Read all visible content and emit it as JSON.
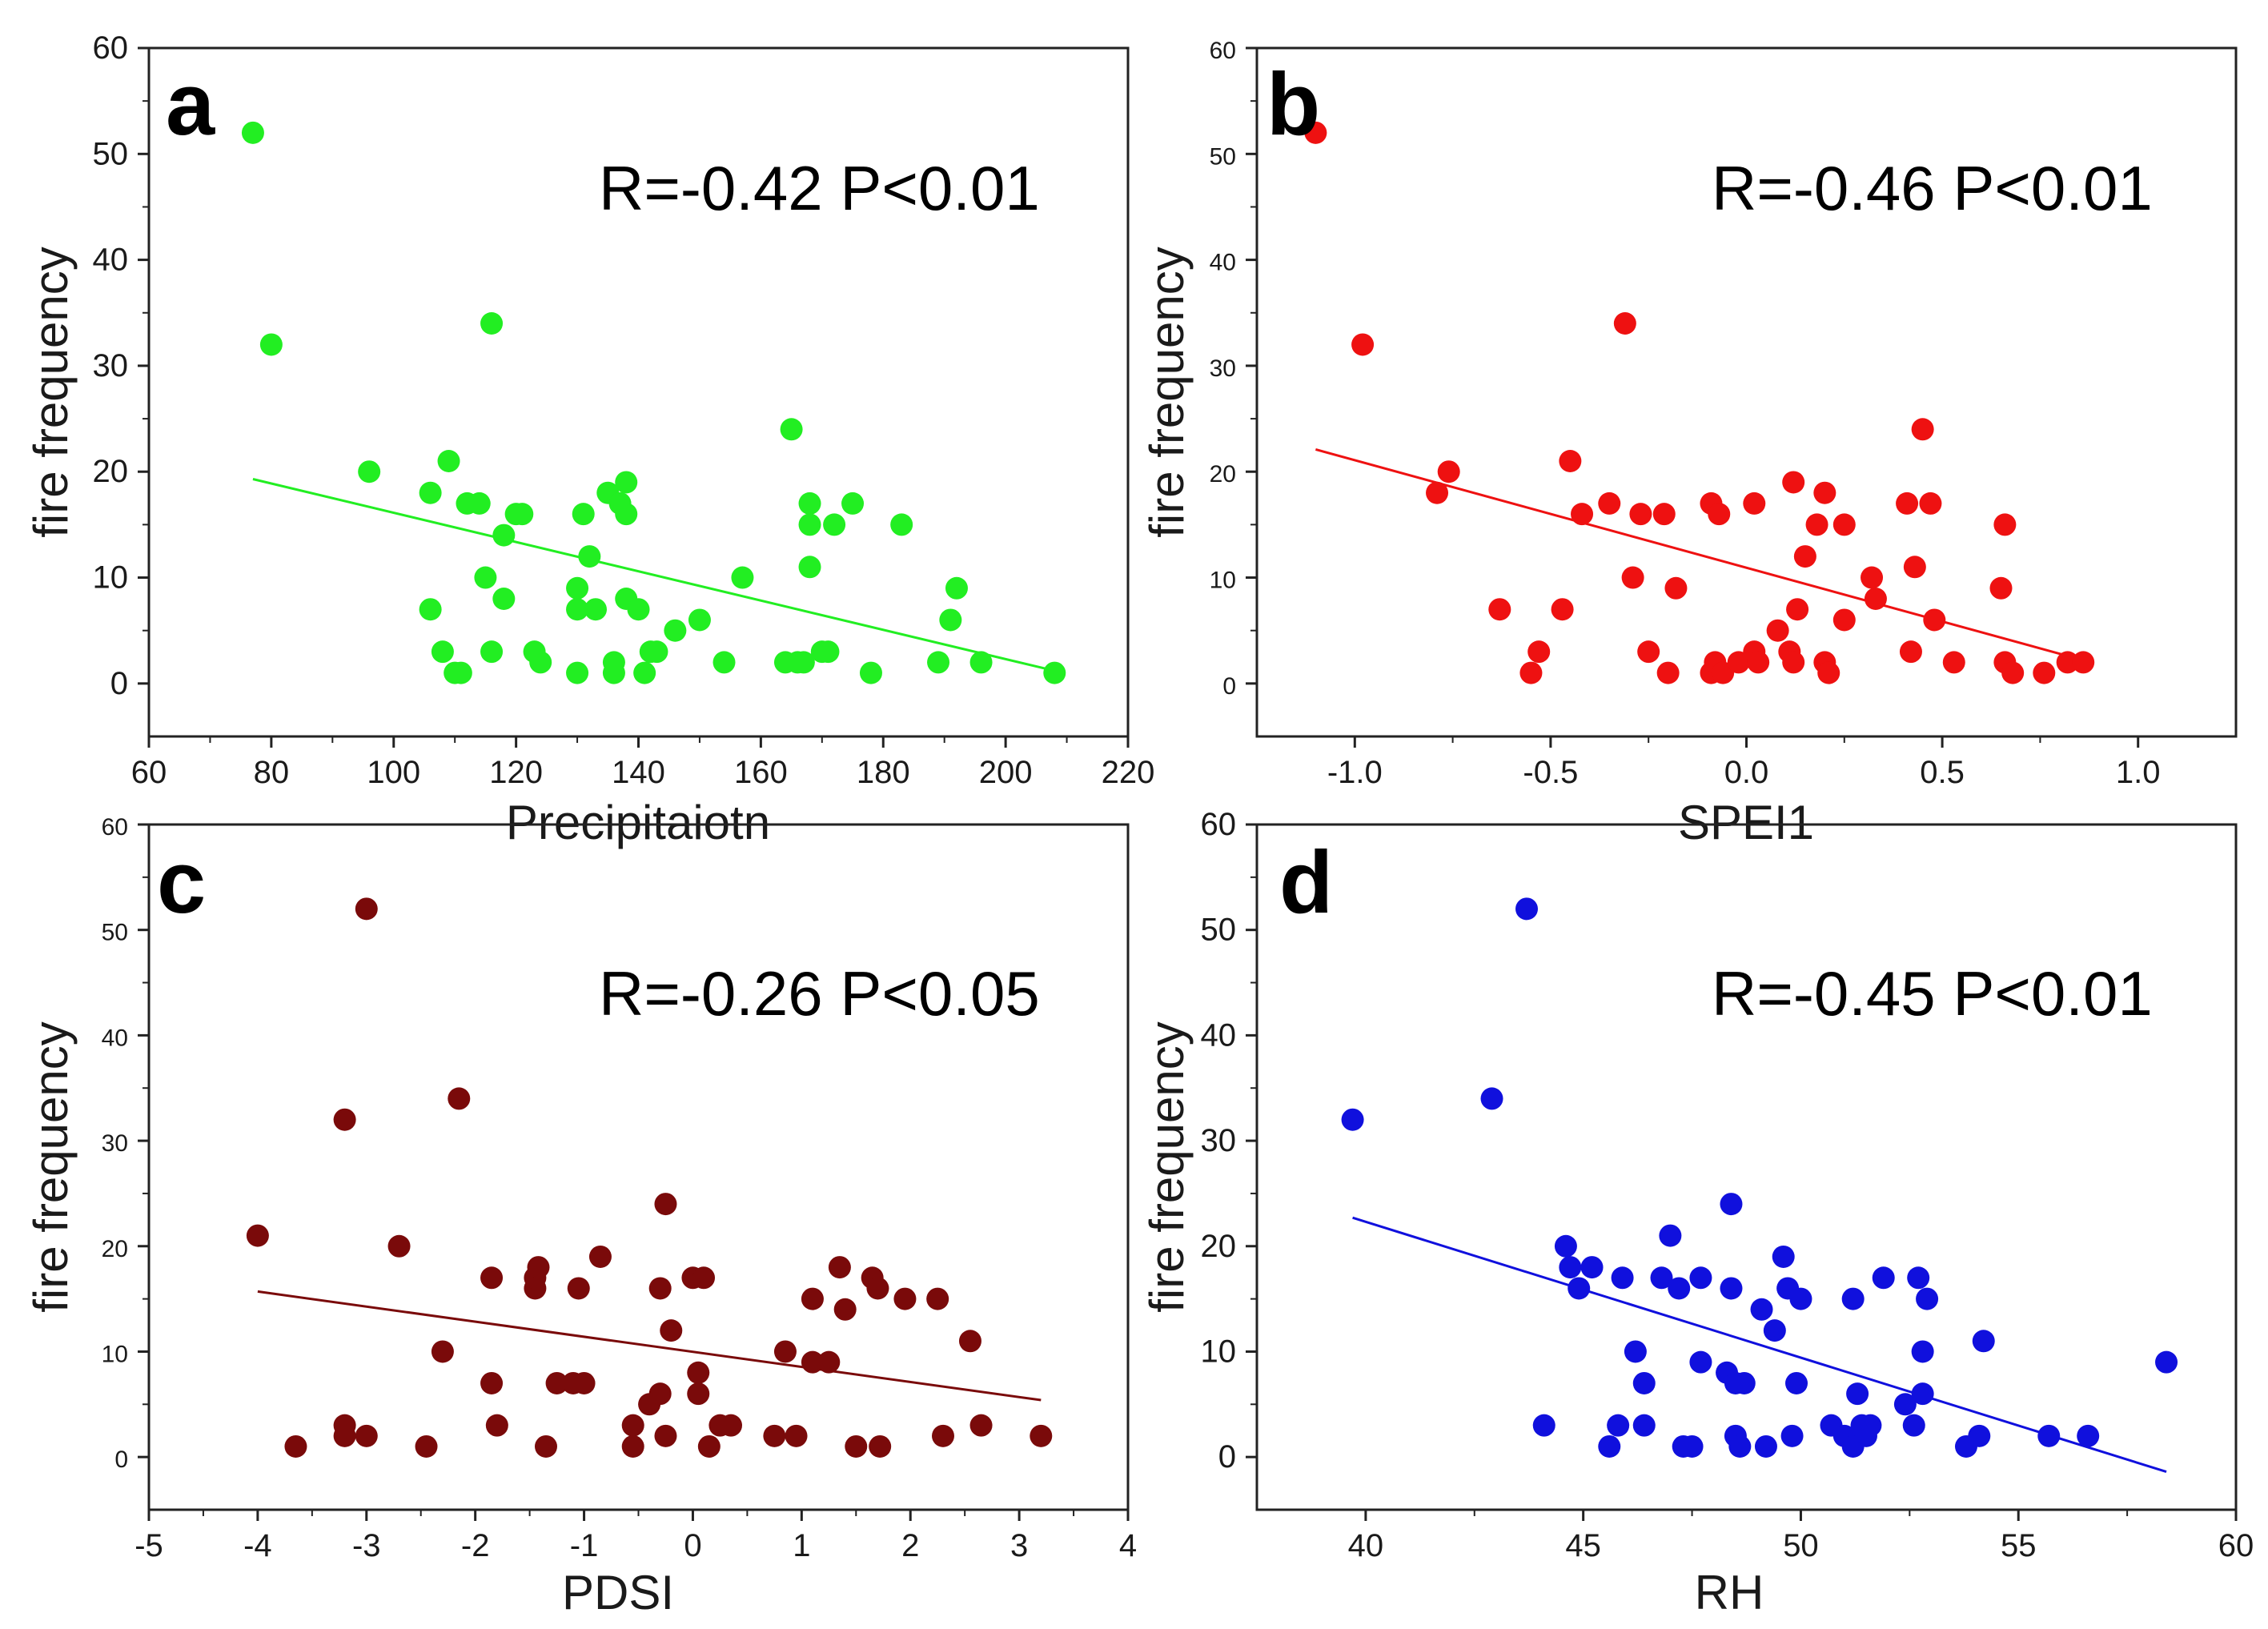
{
  "chart_data": [
    {
      "type": "scatter",
      "panel_label": "a",
      "annotation": "R=-0.42 P<0.01",
      "xlabel": "Precipitaiotn",
      "ylabel": "fire frequency",
      "xlim": [
        60,
        220
      ],
      "ylim": [
        -5,
        60
      ],
      "xticks": [
        "60",
        "80",
        "100",
        "120",
        "140",
        "160",
        "180",
        "200",
        "220"
      ],
      "yticks": [
        "0",
        "10",
        "20",
        "30",
        "40",
        "50",
        "60"
      ],
      "color": "#22ee22",
      "trendline": {
        "x": [
          77,
          208
        ],
        "y": [
          19.3,
          1.2
        ]
      },
      "points": [
        [
          77,
          52
        ],
        [
          80,
          32
        ],
        [
          96,
          20
        ],
        [
          106,
          18
        ],
        [
          106,
          7
        ],
        [
          108,
          3
        ],
        [
          109,
          21
        ],
        [
          110,
          1
        ],
        [
          111,
          1
        ],
        [
          112,
          17
        ],
        [
          114,
          17
        ],
        [
          115,
          10
        ],
        [
          116,
          3
        ],
        [
          116,
          34
        ],
        [
          118,
          14
        ],
        [
          118,
          8
        ],
        [
          120,
          16
        ],
        [
          121,
          16
        ],
        [
          123,
          3
        ],
        [
          124,
          2
        ],
        [
          130,
          9
        ],
        [
          130,
          7
        ],
        [
          130,
          1
        ],
        [
          131,
          16
        ],
        [
          132,
          12
        ],
        [
          133,
          7
        ],
        [
          135,
          18
        ],
        [
          136,
          2
        ],
        [
          136,
          1
        ],
        [
          137,
          17
        ],
        [
          138,
          8
        ],
        [
          138,
          19
        ],
        [
          138,
          16
        ],
        [
          140,
          7
        ],
        [
          141,
          1
        ],
        [
          142,
          3
        ],
        [
          143,
          3
        ],
        [
          146,
          5
        ],
        [
          150,
          6
        ],
        [
          154,
          2
        ],
        [
          157,
          10
        ],
        [
          164,
          2
        ],
        [
          165,
          24
        ],
        [
          166,
          2
        ],
        [
          167,
          2
        ],
        [
          168,
          11
        ],
        [
          168,
          15
        ],
        [
          168,
          17
        ],
        [
          170,
          3
        ],
        [
          171,
          3
        ],
        [
          172,
          15
        ],
        [
          175,
          17
        ],
        [
          178,
          1
        ],
        [
          183,
          15
        ],
        [
          189,
          2
        ],
        [
          191,
          6
        ],
        [
          192,
          9
        ],
        [
          196,
          2
        ],
        [
          208,
          1
        ]
      ]
    },
    {
      "type": "scatter",
      "panel_label": "b",
      "annotation": "R=-0.46 P<0.01",
      "xlabel": "SPEI1",
      "ylabel": "fire frequency",
      "xlim": [
        -1.25,
        1.25
      ],
      "ylim": [
        -5,
        60
      ],
      "xticks": [
        "-1.0",
        "-0.5",
        "0.0",
        "0.5",
        "1.0"
      ],
      "yticks": [
        "0",
        "10",
        "20",
        "30",
        "40",
        "50",
        "60"
      ],
      "color": "#ee1111",
      "trendline": {
        "x": [
          -1.1,
          0.85
        ],
        "y": [
          22.1,
          2.3
        ]
      },
      "points": [
        [
          -1.1,
          52
        ],
        [
          -0.98,
          32
        ],
        [
          -0.76,
          20
        ],
        [
          -0.79,
          18
        ],
        [
          -0.31,
          34
        ],
        [
          -0.45,
          21
        ],
        [
          -0.63,
          7
        ],
        [
          -0.47,
          7
        ],
        [
          -0.53,
          3
        ],
        [
          -0.55,
          1
        ],
        [
          -0.42,
          16
        ],
        [
          -0.35,
          17
        ],
        [
          -0.27,
          16
        ],
        [
          -0.29,
          10
        ],
        [
          -0.25,
          3
        ],
        [
          -0.2,
          1
        ],
        [
          -0.21,
          16
        ],
        [
          -0.18,
          9
        ],
        [
          -0.09,
          17
        ],
        [
          -0.07,
          16
        ],
        [
          -0.09,
          1
        ],
        [
          -0.08,
          2
        ],
        [
          -0.06,
          1
        ],
        [
          -0.02,
          2
        ],
        [
          0.02,
          17
        ],
        [
          0.02,
          3
        ],
        [
          0.03,
          2
        ],
        [
          0.08,
          5
        ],
        [
          0.11,
          3
        ],
        [
          0.12,
          2
        ],
        [
          0.12,
          19
        ],
        [
          0.13,
          7
        ],
        [
          0.15,
          12
        ],
        [
          0.18,
          15
        ],
        [
          0.2,
          18
        ],
        [
          0.2,
          2
        ],
        [
          0.21,
          1
        ],
        [
          0.25,
          15
        ],
        [
          0.25,
          6
        ],
        [
          0.32,
          10
        ],
        [
          0.33,
          8
        ],
        [
          0.41,
          17
        ],
        [
          0.42,
          3
        ],
        [
          0.43,
          11
        ],
        [
          0.45,
          24
        ],
        [
          0.47,
          17
        ],
        [
          0.48,
          6
        ],
        [
          0.53,
          2
        ],
        [
          0.65,
          9
        ],
        [
          0.66,
          15
        ],
        [
          0.66,
          2
        ],
        [
          0.68,
          1
        ],
        [
          0.76,
          1
        ],
        [
          0.82,
          2
        ],
        [
          0.86,
          2
        ]
      ]
    },
    {
      "type": "scatter",
      "panel_label": "c",
      "annotation": "R=-0.26 P<0.05",
      "xlabel": "PDSI",
      "ylabel": "fire frequency",
      "xlim": [
        -5,
        4
      ],
      "ylim": [
        -5,
        60
      ],
      "xticks": [
        "-5",
        "-4",
        "-3",
        "-2",
        "-1",
        "0",
        "1",
        "2",
        "3",
        "4"
      ],
      "yticks": [
        "0",
        "10",
        "20",
        "30",
        "40",
        "50",
        "60"
      ],
      "color": "#7a0a0a",
      "trendline": {
        "x": [
          -4,
          3.2
        ],
        "y": [
          15.7,
          5.4
        ]
      },
      "points": [
        [
          -3,
          52
        ],
        [
          -3.2,
          32
        ],
        [
          -2.15,
          34
        ],
        [
          -4,
          21
        ],
        [
          -2.7,
          20
        ],
        [
          -3.65,
          1
        ],
        [
          -3.2,
          3
        ],
        [
          -3.2,
          2
        ],
        [
          -3,
          2
        ],
        [
          -2.45,
          1
        ],
        [
          -2.3,
          10
        ],
        [
          -1.85,
          17
        ],
        [
          -1.85,
          7
        ],
        [
          -1.8,
          3
        ],
        [
          -1.45,
          16
        ],
        [
          -1.45,
          17
        ],
        [
          -1.42,
          18
        ],
        [
          -1.35,
          1
        ],
        [
          -1.25,
          7
        ],
        [
          -1.1,
          7
        ],
        [
          -1.05,
          16
        ],
        [
          -1,
          7
        ],
        [
          -0.85,
          19
        ],
        [
          -0.55,
          3
        ],
        [
          -0.55,
          1
        ],
        [
          -0.4,
          5
        ],
        [
          -0.3,
          6
        ],
        [
          -0.3,
          16
        ],
        [
          -0.25,
          2
        ],
        [
          -0.25,
          24
        ],
        [
          -0.2,
          12
        ],
        [
          0,
          17
        ],
        [
          0.05,
          8
        ],
        [
          0.05,
          6
        ],
        [
          0.1,
          17
        ],
        [
          0.15,
          1
        ],
        [
          0.25,
          3
        ],
        [
          0.35,
          3
        ],
        [
          0.75,
          2
        ],
        [
          0.85,
          10
        ],
        [
          0.95,
          2
        ],
        [
          1.1,
          15
        ],
        [
          1.1,
          9
        ],
        [
          1.25,
          9
        ],
        [
          1.35,
          18
        ],
        [
          1.4,
          14
        ],
        [
          1.5,
          1
        ],
        [
          1.65,
          17
        ],
        [
          1.7,
          16
        ],
        [
          1.72,
          1
        ],
        [
          1.95,
          15
        ],
        [
          2.25,
          15
        ],
        [
          2.3,
          2
        ],
        [
          2.55,
          11
        ],
        [
          2.65,
          3
        ],
        [
          3.2,
          2
        ]
      ]
    },
    {
      "type": "scatter",
      "panel_label": "d",
      "annotation": "R=-0.45 P<0.01",
      "xlabel": "RH",
      "ylabel": "fire frequency",
      "xlim": [
        37.5,
        60
      ],
      "ylim": [
        -5,
        60
      ],
      "xticks": [
        "40",
        "45",
        "50",
        "55",
        "60"
      ],
      "yticks": [
        "0",
        "10",
        "20",
        "30",
        "40",
        "50",
        "60"
      ],
      "color": "#1010dd",
      "trendline": {
        "x": [
          39.7,
          58.4
        ],
        "y": [
          22.7,
          -1.4
        ]
      },
      "points": [
        [
          43.7,
          52
        ],
        [
          39.7,
          32
        ],
        [
          42.9,
          34
        ],
        [
          44.6,
          20
        ],
        [
          44.7,
          18
        ],
        [
          44.9,
          16
        ],
        [
          45.2,
          18
        ],
        [
          45.9,
          17
        ],
        [
          46.2,
          10
        ],
        [
          46.4,
          7
        ],
        [
          46.4,
          3
        ],
        [
          45.6,
          1
        ],
        [
          44.1,
          3
        ],
        [
          45.8,
          3
        ],
        [
          46.8,
          17
        ],
        [
          47,
          21
        ],
        [
          47.2,
          16
        ],
        [
          47.3,
          1
        ],
        [
          47.5,
          1
        ],
        [
          47.7,
          17
        ],
        [
          47.7,
          9
        ],
        [
          48.4,
          24
        ],
        [
          48.3,
          8
        ],
        [
          48.5,
          7
        ],
        [
          48.7,
          7
        ],
        [
          48.4,
          16
        ],
        [
          48.5,
          2
        ],
        [
          48.6,
          1
        ],
        [
          49.1,
          14
        ],
        [
          49.2,
          1
        ],
        [
          49.4,
          12
        ],
        [
          49.6,
          19
        ],
        [
          49.7,
          16
        ],
        [
          49.8,
          2
        ],
        [
          49.9,
          7
        ],
        [
          50,
          15
        ],
        [
          50.7,
          3
        ],
        [
          51,
          2
        ],
        [
          51.2,
          15
        ],
        [
          51.2,
          1
        ],
        [
          51.3,
          6
        ],
        [
          51.4,
          3
        ],
        [
          51.5,
          2
        ],
        [
          51.6,
          3
        ],
        [
          51.9,
          17
        ],
        [
          52.4,
          5
        ],
        [
          52.6,
          3
        ],
        [
          52.7,
          17
        ],
        [
          52.8,
          10
        ],
        [
          52.8,
          6
        ],
        [
          52.9,
          15
        ],
        [
          53.8,
          1
        ],
        [
          54.1,
          2
        ],
        [
          54.2,
          11
        ],
        [
          55.7,
          2
        ],
        [
          56.6,
          2
        ],
        [
          58.4,
          9
        ]
      ]
    }
  ]
}
